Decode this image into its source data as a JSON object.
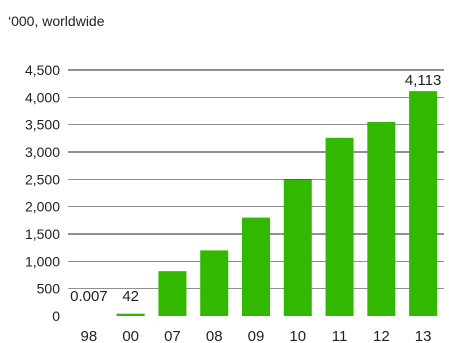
{
  "chart_data": {
    "type": "bar",
    "subtitle": "‘000, worldwide",
    "categories": [
      "98",
      "00",
      "07",
      "08",
      "09",
      "10",
      "11",
      "12",
      "13"
    ],
    "values": [
      0.007,
      42,
      820,
      1200,
      1800,
      2500,
      3260,
      3550,
      4113
    ],
    "data_labels": [
      {
        "category": "98",
        "text": "0.007"
      },
      {
        "category": "00",
        "text": "42"
      },
      {
        "category": "13",
        "text": "4,113"
      }
    ],
    "yticks": [
      "0",
      "500",
      "1,000",
      "1,500",
      "2,000",
      "2,500",
      "3,000",
      "3,500",
      "4,000",
      "4,500"
    ],
    "ylim": [
      0,
      4500
    ],
    "grid": true,
    "colors": {
      "bar": "#33b800",
      "grid": "#222222",
      "text": "#222222"
    }
  }
}
